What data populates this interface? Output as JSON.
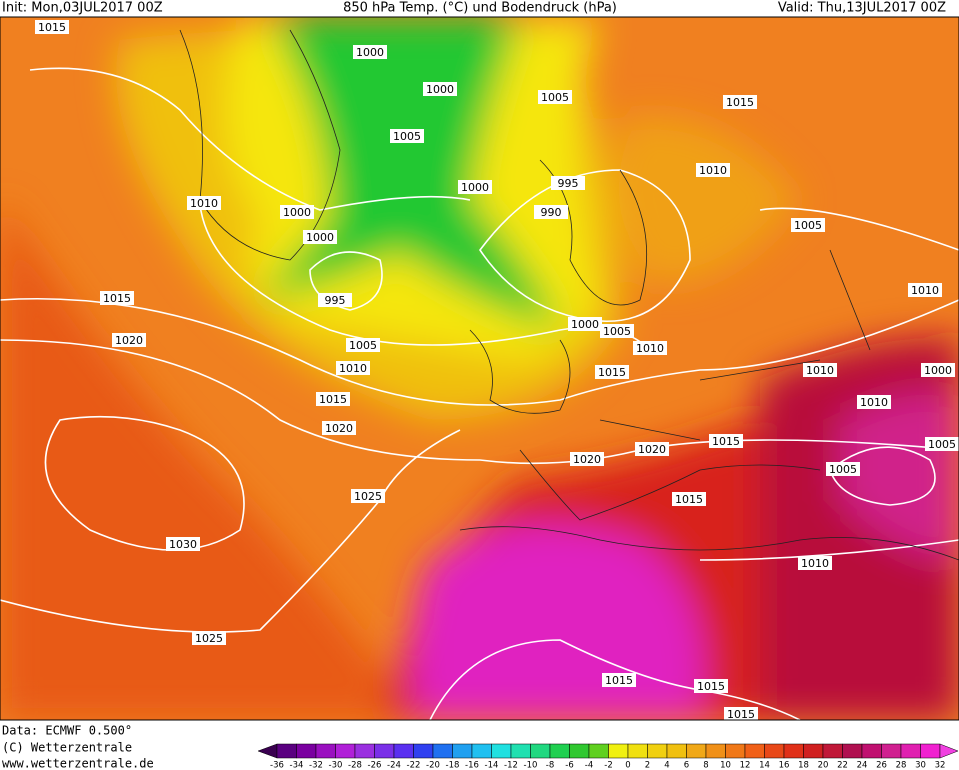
{
  "header": {
    "init": "Init: Mon,03JUL2017 00Z",
    "title": "850 hPa Temp. (°C) und Bodendruck (hPa)",
    "valid": "Valid: Thu,13JUL2017 00Z"
  },
  "footer": {
    "data": "Data: ECMWF  0.500°",
    "copyright": "(C) Wetterzentrale",
    "url": "www.wetterzentrale.de"
  },
  "colorbar": {
    "labels": [
      -36,
      -34,
      -32,
      -30,
      -28,
      -26,
      -24,
      -22,
      -20,
      -18,
      -16,
      -14,
      -12,
      -10,
      -8,
      -6,
      -4,
      -2,
      0,
      2,
      4,
      6,
      8,
      10,
      12,
      14,
      16,
      18,
      20,
      22,
      24,
      26,
      28,
      30,
      32
    ]
  },
  "map": {
    "isobar_labels": [
      "1015",
      "1000",
      "1000",
      "1005",
      "1015",
      "1005",
      "1010",
      "995",
      "1000",
      "1010",
      "990",
      "1000",
      "1005",
      "1000",
      "1015",
      "995",
      "1010",
      "1000",
      "1005",
      "1020",
      "1005",
      "1010",
      "1010",
      "1015",
      "1010",
      "1000",
      "1015",
      "1010",
      "1020",
      "1015",
      "1005",
      "1020",
      "1020",
      "1005",
      "1025",
      "1015",
      "1030",
      "1010",
      "1025",
      "1015",
      "1015",
      "1015"
    ]
  }
}
